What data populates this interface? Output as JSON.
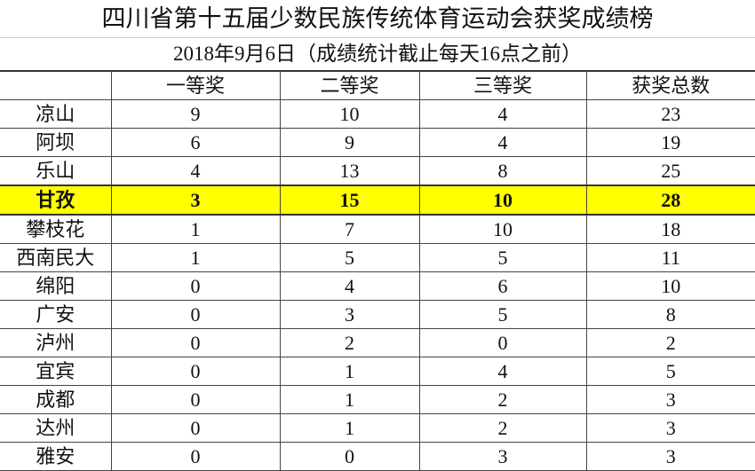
{
  "title": "四川省第十五届少数民族传统体育运动会获奖成绩榜",
  "subtitle": "2018年9月6日（成绩统计截止每天16点之前）",
  "highlight_color": "#ffff00",
  "columns": [
    "",
    "一等奖",
    "二等奖",
    "三等奖",
    "获奖总数"
  ],
  "rows": [
    {
      "name": "凉山",
      "first": "9",
      "second": "10",
      "third": "4",
      "total": "23",
      "highlight": false
    },
    {
      "name": "阿坝",
      "first": "6",
      "second": "9",
      "third": "4",
      "total": "19",
      "highlight": false
    },
    {
      "name": "乐山",
      "first": "4",
      "second": "13",
      "third": "8",
      "total": "25",
      "highlight": false
    },
    {
      "name": "甘孜",
      "first": "3",
      "second": "15",
      "third": "10",
      "total": "28",
      "highlight": true
    },
    {
      "name": "攀枝花",
      "first": "1",
      "second": "7",
      "third": "10",
      "total": "18",
      "highlight": false
    },
    {
      "name": "西南民大",
      "first": "1",
      "second": "5",
      "third": "5",
      "total": "11",
      "highlight": false
    },
    {
      "name": "绵阳",
      "first": "0",
      "second": "4",
      "third": "6",
      "total": "10",
      "highlight": false
    },
    {
      "name": "广安",
      "first": "0",
      "second": "3",
      "third": "5",
      "total": "8",
      "highlight": false
    },
    {
      "name": "泸州",
      "first": "0",
      "second": "2",
      "third": "0",
      "total": "2",
      "highlight": false
    },
    {
      "name": "宜宾",
      "first": "0",
      "second": "1",
      "third": "4",
      "total": "5",
      "highlight": false
    },
    {
      "name": "成都",
      "first": "0",
      "second": "1",
      "third": "2",
      "total": "3",
      "highlight": false
    },
    {
      "name": "达州",
      "first": "0",
      "second": "1",
      "third": "2",
      "total": "3",
      "highlight": false
    },
    {
      "name": "雅安",
      "first": "0",
      "second": "0",
      "third": "3",
      "total": "3",
      "highlight": false
    }
  ]
}
